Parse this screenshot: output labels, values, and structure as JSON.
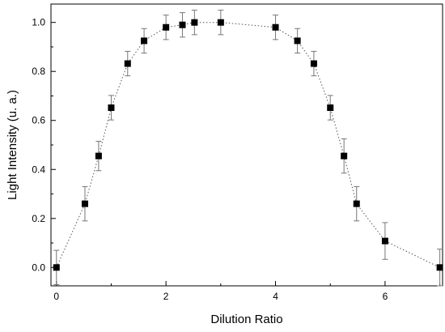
{
  "chart_data": {
    "type": "scatter",
    "title": "",
    "xlabel": "Dilution Ratio",
    "ylabel": "Light Intensity (u. a.)",
    "xlim": [
      -0.1,
      7.05
    ],
    "ylim": [
      -0.075,
      1.075
    ],
    "xticks": [
      0,
      2,
      4,
      6
    ],
    "xtick_labels": [
      "0",
      "2",
      "4",
      "6"
    ],
    "yticks": [
      0.0,
      0.2,
      0.4,
      0.6,
      0.8,
      1.0
    ],
    "ytick_labels": [
      "0.0",
      "0.2",
      "0.4",
      "0.6",
      "0.8",
      "1.0"
    ],
    "grid": false,
    "line_style": "dotted",
    "marker": "square",
    "series": [
      {
        "x": [
          0,
          0.52,
          0.77,
          1.0,
          1.3,
          1.6,
          2.0,
          2.3,
          2.52,
          3.0,
          4.0,
          4.4,
          4.7,
          5.0,
          5.25,
          5.48,
          6.0,
          7.0
        ],
        "y": [
          0.0,
          0.26,
          0.455,
          0.652,
          0.832,
          0.925,
          0.98,
          0.99,
          1.0,
          1.0,
          0.98,
          0.925,
          0.832,
          0.652,
          0.455,
          0.26,
          0.108,
          0.0
        ],
        "error": [
          0.07,
          0.07,
          0.06,
          0.05,
          0.05,
          0.05,
          0.05,
          0.05,
          0.05,
          0.05,
          0.05,
          0.05,
          0.05,
          0.05,
          0.07,
          0.07,
          0.075,
          0.075
        ]
      }
    ]
  }
}
